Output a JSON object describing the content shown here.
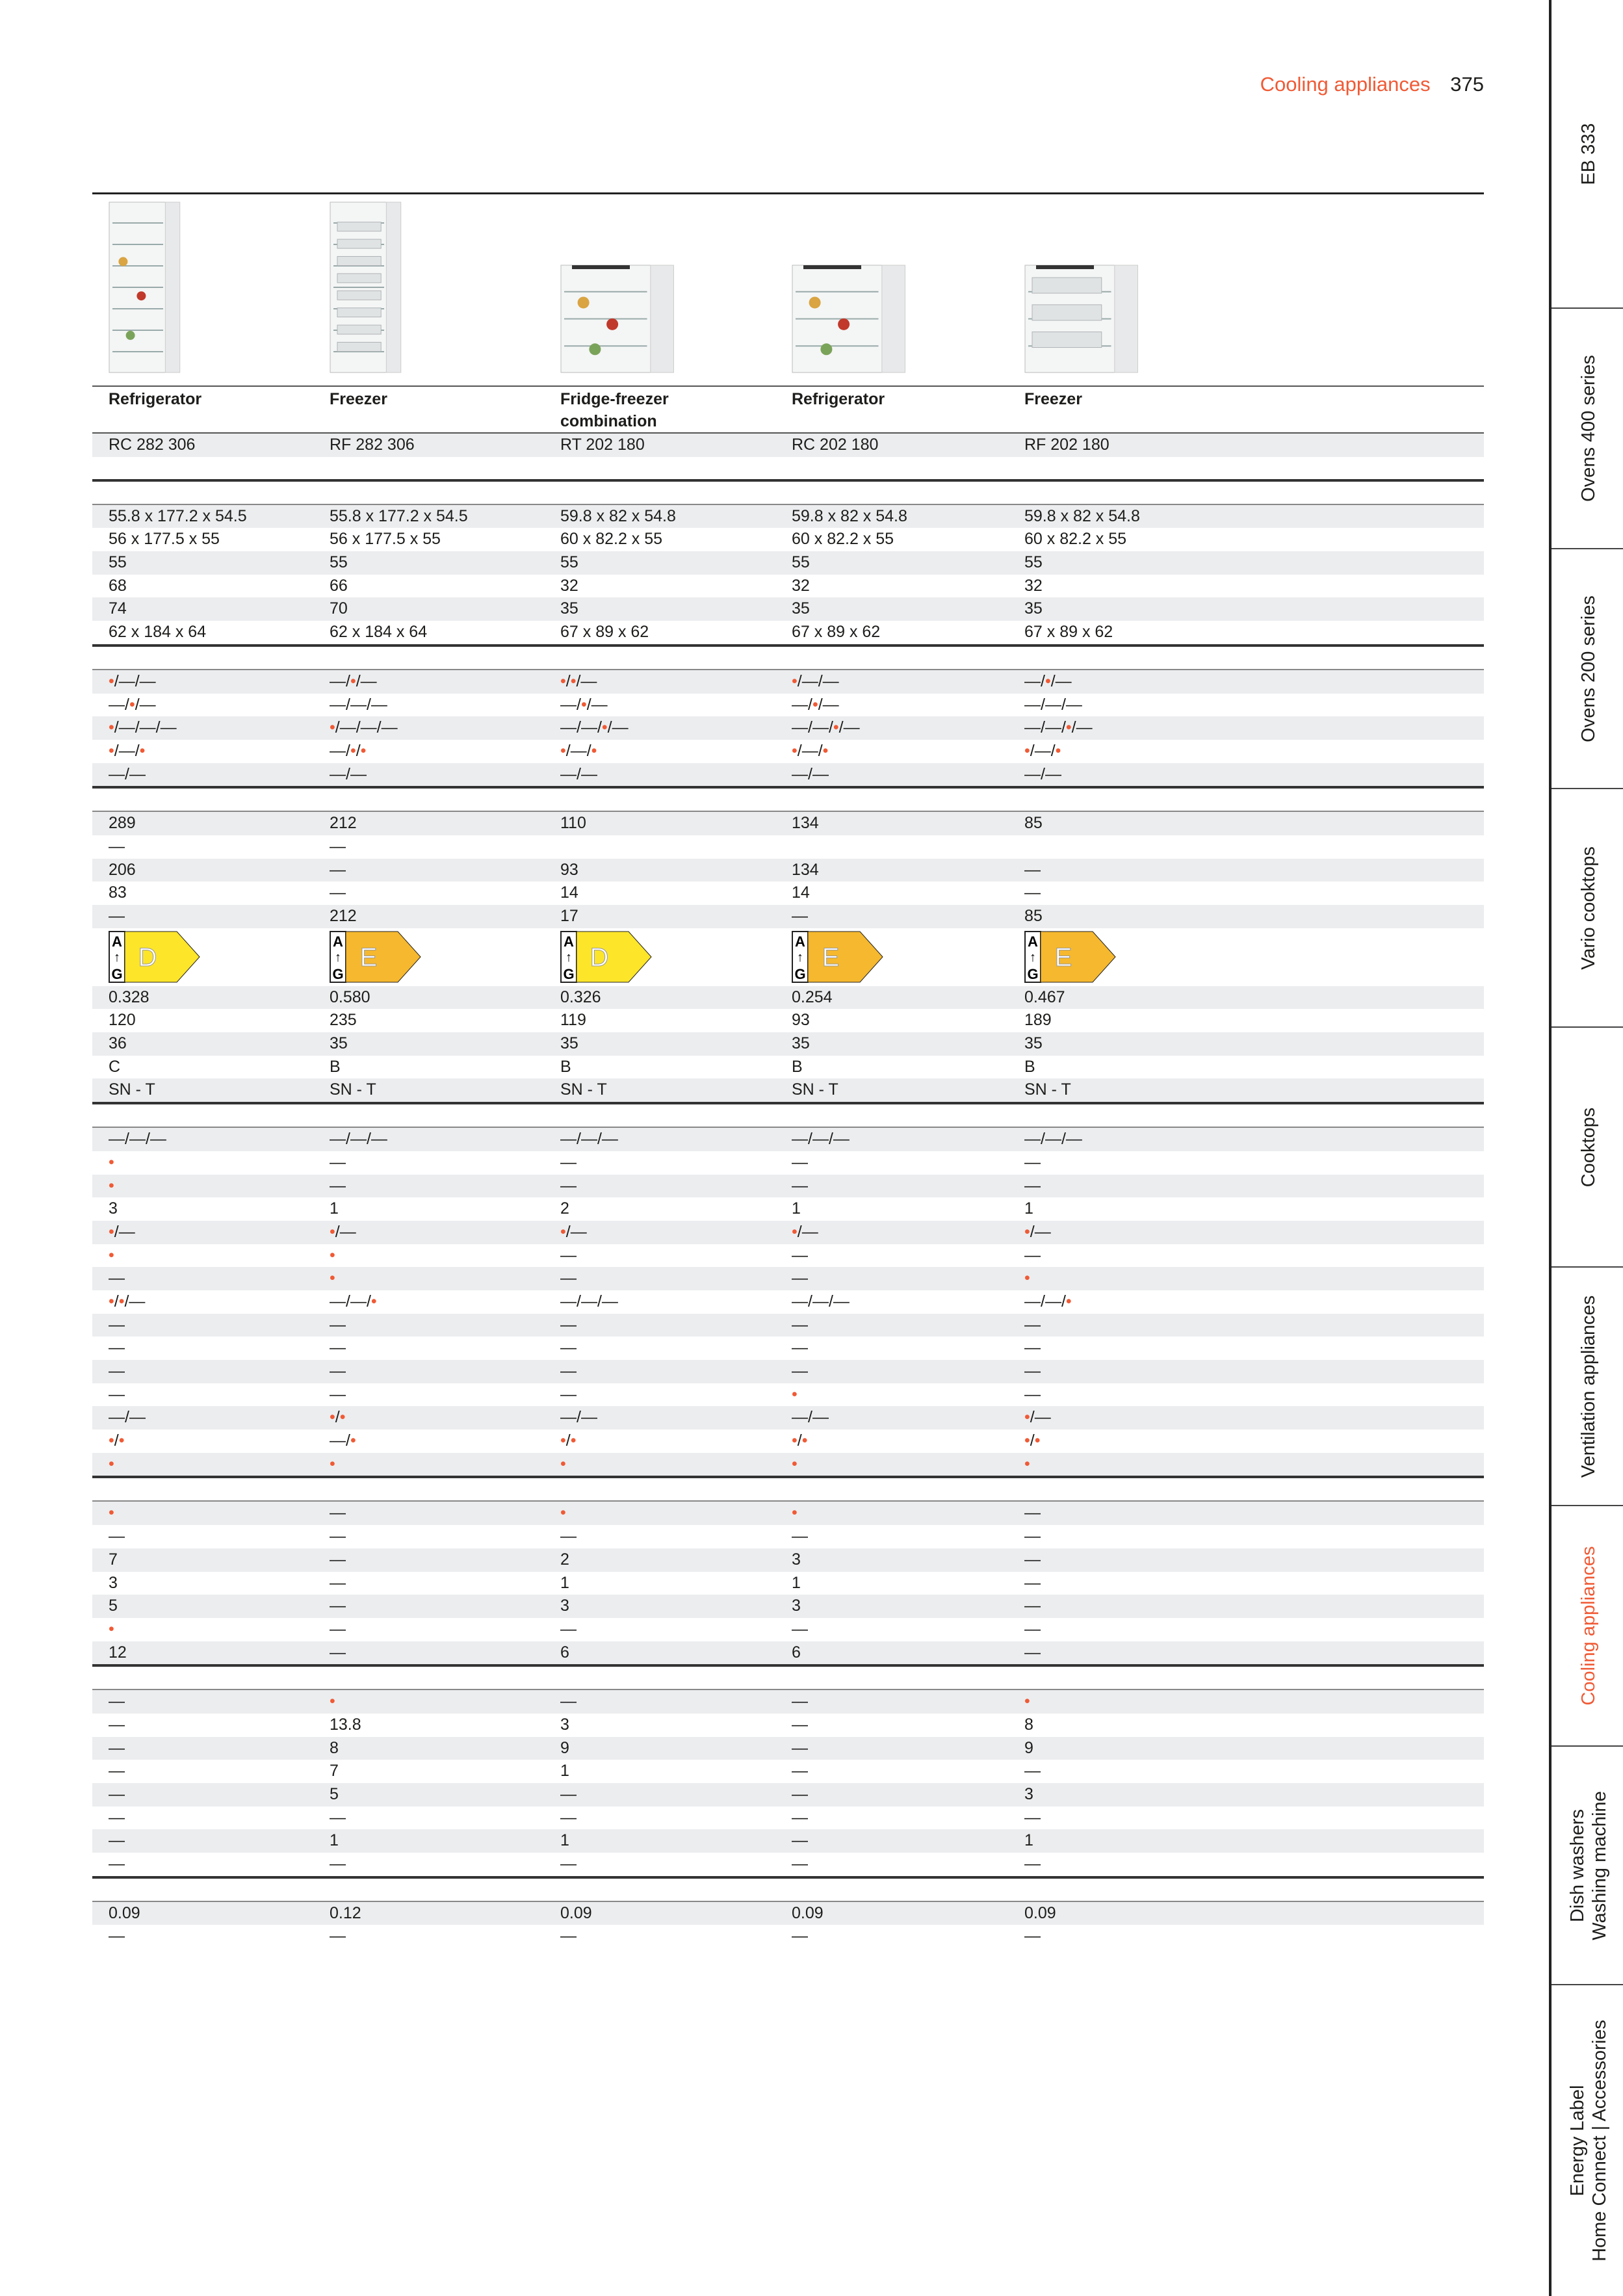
{
  "header": {
    "section_title": "Cooling appliances",
    "page_number": "375"
  },
  "colors": {
    "accent": "#f05a35",
    "energy_D": "#fde52a",
    "energy_E": "#f5b82e",
    "row_band": "#ecedef"
  },
  "products": [
    {
      "type": "Refrigerator",
      "model": "RC 282 306",
      "image": "tall-refrigerator"
    },
    {
      "type": "Freezer",
      "model": "RF 282 306",
      "image": "tall-freezer"
    },
    {
      "type": "Fridge-freezer combination",
      "model": "RT 202 180",
      "image": "undercounter-fridge-freezer"
    },
    {
      "type": "Refrigerator",
      "model": "RC 202 180",
      "image": "undercounter-refrigerator"
    },
    {
      "type": "Freezer",
      "model": "RF 202 180",
      "image": "undercounter-freezer"
    }
  ],
  "sections": [
    [
      [
        "55.8 x 177.2 x 54.5",
        "55.8 x 177.2 x 54.5",
        "59.8 x 82 x 54.8",
        "59.8 x 82 x 54.8",
        "59.8 x 82 x 54.8"
      ],
      [
        "56 x 177.5 x 55",
        "56 x 177.5 x 55",
        "60 x 82.2 x 55",
        "60 x 82.2 x 55",
        "60 x 82.2 x 55"
      ],
      [
        "55",
        "55",
        "55",
        "55",
        "55"
      ],
      [
        "68",
        "66",
        "32",
        "32",
        "32"
      ],
      [
        "74",
        "70",
        "35",
        "35",
        "35"
      ],
      [
        "62 x 184 x 64",
        "62 x 184 x 64",
        "67 x 89 x 62",
        "67 x 89 x 62",
        "67 x 89 x 62"
      ]
    ],
    [
      [
        "•/—/—",
        "—/•/—",
        "•/•/—",
        "•/—/—",
        "—/•/—"
      ],
      [
        "—/•/—",
        "—/—/—",
        "—/•/—",
        "—/•/—",
        "—/—/—"
      ],
      [
        "•/—/—/—",
        "•/—/—/—",
        "—/—/•/—",
        "—/—/•/—",
        "—/—/•/—"
      ],
      [
        "•/—/•",
        "—/•/•",
        "•/—/•",
        "•/—/•",
        "•/—/•"
      ],
      [
        "—/—",
        "—/—",
        "—/—",
        "—/—",
        "—/—"
      ]
    ],
    [
      [
        "289",
        "212",
        "110",
        "134",
        "85"
      ],
      [
        "—",
        "—",
        "",
        "",
        ""
      ],
      [
        "206",
        "—",
        "93",
        "134",
        "—"
      ],
      [
        "83",
        "—",
        "14",
        "14",
        "—"
      ],
      [
        "—",
        "212",
        "17",
        "—",
        "85"
      ],
      {
        "energy": [
          "D",
          "E",
          "D",
          "E",
          "E"
        ]
      },
      [
        "0.328",
        "0.580",
        "0.326",
        "0.254",
        "0.467"
      ],
      [
        "120",
        "235",
        "119",
        "93",
        "189"
      ],
      [
        "36",
        "35",
        "35",
        "35",
        "35"
      ],
      [
        "C",
        "B",
        "B",
        "B",
        "B"
      ],
      [
        "SN - T",
        "SN - T",
        "SN - T",
        "SN - T",
        "SN - T"
      ]
    ],
    [
      [
        "—/—/—",
        "—/—/—",
        "—/—/—",
        "—/—/—",
        "—/—/—"
      ],
      [
        "•",
        "—",
        "—",
        "—",
        "—"
      ],
      [
        "•",
        "—",
        "—",
        "—",
        "—"
      ],
      [
        "3",
        "1",
        "2",
        "1",
        "1"
      ],
      [
        "•/—",
        "•/—",
        "•/—",
        "•/—",
        "•/—"
      ],
      [
        "•",
        "•",
        "—",
        "—",
        "—"
      ],
      [
        "—",
        "•",
        "—",
        "—",
        "•"
      ],
      [
        "•/•/—",
        "—/—/•",
        "—/—/—",
        "—/—/—",
        "—/—/•"
      ],
      [
        "—",
        "—",
        "—",
        "—",
        "—"
      ],
      [
        "—",
        "—",
        "—",
        "—",
        "—"
      ],
      [
        "—",
        "—",
        "—",
        "—",
        "—"
      ],
      [
        "—",
        "—",
        "—",
        "•",
        "—"
      ],
      [
        "—/—",
        "•/•",
        "—/—",
        "—/—",
        "•/—"
      ],
      [
        "•/•",
        "—/•",
        "•/•",
        "•/•",
        "•/•"
      ],
      [
        "•",
        "•",
        "•",
        "•",
        "•"
      ]
    ],
    [
      [
        "•",
        "—",
        "•",
        "•",
        "—"
      ],
      [
        "—",
        "—",
        "—",
        "—",
        "—"
      ],
      [
        "7",
        "—",
        "2",
        "3",
        "—"
      ],
      [
        "3",
        "—",
        "1",
        "1",
        "—"
      ],
      [
        "5",
        "—",
        "3",
        "3",
        "—"
      ],
      [
        "•",
        "—",
        "—",
        "—",
        "—"
      ],
      [
        "12",
        "—",
        "6",
        "6",
        "—"
      ]
    ],
    [
      [
        "—",
        "•",
        "—",
        "—",
        "•"
      ],
      [
        "—",
        "13.8",
        "3",
        "—",
        "8"
      ],
      [
        "—",
        "8",
        "9",
        "—",
        "9"
      ],
      [
        "—",
        "7",
        "1",
        "—",
        "—"
      ],
      [
        "—",
        "5",
        "—",
        "—",
        "3"
      ],
      [
        "—",
        "—",
        "—",
        "—",
        "—"
      ],
      [
        "—",
        "1",
        "1",
        "—",
        "1"
      ],
      [
        "—",
        "—",
        "—",
        "—",
        "—"
      ]
    ],
    [
      [
        "0.09",
        "0.12",
        "0.09",
        "0.09",
        "0.09"
      ],
      [
        "—",
        "—",
        "—",
        "—",
        "—"
      ]
    ]
  ],
  "sidebar": {
    "tabs": [
      {
        "label": "EB 333",
        "active": false
      },
      {
        "label": "Ovens 400 series",
        "active": false
      },
      {
        "label": "Ovens 200 series",
        "active": false
      },
      {
        "label": "Vario cooktops",
        "active": false
      },
      {
        "label": "Cooktops",
        "active": false
      },
      {
        "label": "Ventilation appliances",
        "active": false
      },
      {
        "label": "Cooling appliances",
        "active": true
      },
      {
        "label": "Dish washers\nWashing machine",
        "active": false
      },
      {
        "label": "Energy Label\nHome Connect | Accessories",
        "active": false
      }
    ]
  }
}
